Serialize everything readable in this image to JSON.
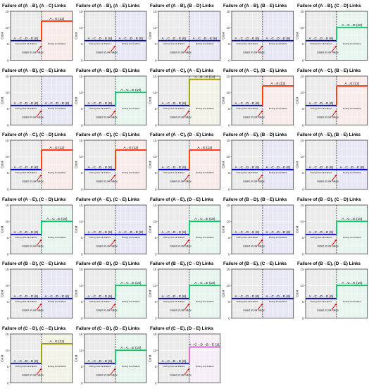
{
  "chart_data": [
    {
      "type": "line",
      "title": "Failure of (A→B), (A→C) Links",
      "ylabel": "Cost",
      "ylim": [
        0,
        15
      ],
      "yticks": [
        0,
        5,
        10,
        15
      ],
      "before": {
        "path": "A→C→D→E (6)",
        "cost": 6,
        "color": "#0000cc"
      },
      "after": {
        "path": "A→E (12)",
        "cost": 12,
        "color": "#ff3300"
      },
      "labels": {
        "left_phase": "During No-Link Failure",
        "right_phase": "During Link Failure",
        "instant": "Instant of Link Failure"
      }
    },
    {
      "type": "line",
      "title": "Failure of (A→B), (A→E) Links",
      "ylabel": "Cost",
      "ylim": [
        0,
        15
      ],
      "yticks": [
        0,
        5,
        10,
        15
      ],
      "before": {
        "path": "A→C→D→E (6)",
        "cost": 6,
        "color": "#0000cc"
      },
      "after": {
        "path": "A→C→D→E (6)",
        "cost": 6,
        "color": "#0000cc"
      },
      "labels": {
        "left_phase": "During No-Link Failure",
        "right_phase": "During Link Failure",
        "instant": "Instant of Link Failure"
      }
    },
    {
      "type": "line",
      "title": "Failure of (A→B), (B→D) Links",
      "ylabel": "Cost",
      "ylim": [
        0,
        15
      ],
      "yticks": [
        0,
        5,
        10,
        15
      ],
      "before": {
        "path": "A→C→D→E (6)",
        "cost": 6,
        "color": "#0000cc"
      },
      "after": {
        "path": "A→C→D→E (6)",
        "cost": 6,
        "color": "#0000cc"
      },
      "labels": {
        "left_phase": "During No-Link Failure",
        "right_phase": "During Link Failure",
        "instant": "Instant of Link Failure"
      }
    },
    {
      "type": "line",
      "title": "Failure of (A→B), (B→E) Links",
      "ylabel": "Cost",
      "ylim": [
        0,
        15
      ],
      "yticks": [
        0,
        5,
        10,
        15
      ],
      "before": {
        "path": "A→C→D→E (6)",
        "cost": 6,
        "color": "#0000cc"
      },
      "after": {
        "path": "A→C→D→E (6)",
        "cost": 6,
        "color": "#0000cc"
      },
      "labels": {
        "left_phase": "During No-Link Failure",
        "right_phase": "During Link Failure",
        "instant": "Instant of Link Failure"
      }
    },
    {
      "type": "line",
      "title": "Failure of (A→B), (C→D) Links",
      "ylabel": "Cost",
      "ylim": [
        0,
        15
      ],
      "yticks": [
        0,
        5,
        10,
        15
      ],
      "before": {
        "path": "A→C→D→E (6)",
        "cost": 6,
        "color": "#0000cc"
      },
      "after": {
        "path": "A→C→E (10)",
        "cost": 10,
        "color": "#00cc66"
      },
      "labels": {
        "left_phase": "During No-Link Failure",
        "right_phase": "During Link Failure",
        "instant": "Instant of Link Failure"
      }
    },
    {
      "type": "line",
      "title": "Failure of (A→B), (C→E) Links",
      "ylabel": "Cost",
      "ylim": [
        0,
        15
      ],
      "yticks": [
        0,
        5,
        10,
        15
      ],
      "before": {
        "path": "A→C→D→E (6)",
        "cost": 6,
        "color": "#0000cc"
      },
      "after": {
        "path": "A→C→D→E (6)",
        "cost": 6,
        "color": "#0000cc"
      },
      "labels": {
        "left_phase": "During No-Link Failure",
        "right_phase": "During Link Failure",
        "instant": "Instant of Link Failure"
      }
    },
    {
      "type": "line",
      "title": "Failure of (A→B), (D→E) Links",
      "ylabel": "Cost",
      "ylim": [
        0,
        15
      ],
      "yticks": [
        0,
        5,
        10,
        15
      ],
      "before": {
        "path": "A→C→D→E (6)",
        "cost": 6,
        "color": "#0000cc"
      },
      "after": {
        "path": "A→C→E (10)",
        "cost": 10,
        "color": "#00cc66"
      },
      "labels": {
        "left_phase": "During No-Link Failure",
        "right_phase": "During Link Failure",
        "instant": "Instant of Link Failure"
      }
    },
    {
      "type": "line",
      "title": "Failure of (A→C), (A→E) Links",
      "ylabel": "Cost",
      "ylim": [
        0,
        15
      ],
      "yticks": [
        0,
        5,
        10,
        15
      ],
      "before": {
        "path": "A→C→D→E (6)",
        "cost": 6,
        "color": "#0000cc"
      },
      "after": {
        "path": "A→B→E (14)",
        "cost": 14,
        "color": "#999900"
      },
      "labels": {
        "left_phase": "During No-Link Failure",
        "right_phase": "During Link Failure",
        "instant": "Instant of Link Failure"
      }
    },
    {
      "type": "line",
      "title": "Failure of (A→C), (B→E) Links",
      "ylabel": "Cost",
      "ylim": [
        0,
        15
      ],
      "yticks": [
        0,
        5,
        10,
        15
      ],
      "before": {
        "path": "A→C→D→E (6)",
        "cost": 6,
        "color": "#0000cc"
      },
      "after": {
        "path": "A→E (12)",
        "cost": 12,
        "color": "#ff3300"
      },
      "labels": {
        "left_phase": "During No-Link Failure",
        "right_phase": "During Link Failure",
        "instant": "Instant of Link Failure"
      }
    },
    {
      "type": "line",
      "title": "Failure of (A→C), (B→E) Links",
      "ylabel": "Cost",
      "ylim": [
        0,
        15
      ],
      "yticks": [
        0,
        5,
        10,
        15
      ],
      "before": {
        "path": "A→C→D→E (6)",
        "cost": 6,
        "color": "#0000cc"
      },
      "after": {
        "path": "A→E (12)",
        "cost": 12,
        "color": "#ff3300"
      },
      "labels": {
        "left_phase": "During No-Link Failure",
        "right_phase": "During Link Failure",
        "instant": "Instant of Link Failure"
      }
    },
    {
      "type": "line",
      "title": "Failure of (A→C), (C→D) Links",
      "ylabel": "Cost",
      "ylim": [
        0,
        15
      ],
      "yticks": [
        0,
        5,
        10,
        15
      ],
      "before": {
        "path": "A→C→D→E (6)",
        "cost": 6,
        "color": "#0000cc"
      },
      "after": {
        "path": "A→E (12)",
        "cost": 12,
        "color": "#ff3300"
      },
      "labels": {
        "left_phase": "During No-Link Failure",
        "right_phase": "During Link Failure",
        "instant": "Instant of Link Failure"
      }
    },
    {
      "type": "line",
      "title": "Failure of (A→C), (C→E) Links",
      "ylabel": "Cost",
      "ylim": [
        0,
        15
      ],
      "yticks": [
        0,
        5,
        10,
        15
      ],
      "before": {
        "path": "A→C→D→E (6)",
        "cost": 6,
        "color": "#0000cc"
      },
      "after": {
        "path": "A→E (12)",
        "cost": 12,
        "color": "#ff3300"
      },
      "labels": {
        "left_phase": "During No-Link Failure",
        "right_phase": "During Link Failure",
        "instant": "Instant of Link Failure"
      }
    },
    {
      "type": "line",
      "title": "Failure of (A→C), (D→E) Links",
      "ylabel": "Cost",
      "ylim": [
        0,
        15
      ],
      "yticks": [
        0,
        5,
        10,
        15
      ],
      "before": {
        "path": "A→C→D→E (6)",
        "cost": 6,
        "color": "#0000cc"
      },
      "after": {
        "path": "A→E (12)",
        "cost": 12,
        "color": "#ff3300"
      },
      "labels": {
        "left_phase": "During No-Link Failure",
        "right_phase": "During Link Failure",
        "instant": "Instant of Link Failure"
      }
    },
    {
      "type": "line",
      "title": "Failure of (A→E), (B→D) Links",
      "ylabel": "Cost",
      "ylim": [
        0,
        15
      ],
      "yticks": [
        0,
        5,
        10,
        15
      ],
      "before": {
        "path": "A→C→D→E (6)",
        "cost": 6,
        "color": "#0000cc"
      },
      "after": {
        "path": "A→C→D→E (6)",
        "cost": 6,
        "color": "#0000cc"
      },
      "labels": {
        "left_phase": "During No-Link Failure",
        "right_phase": "During Link Failure",
        "instant": "Instant of Link Failure"
      }
    },
    {
      "type": "line",
      "title": "Failure of (A→E), (B→E) Links",
      "ylabel": "Cost",
      "ylim": [
        0,
        15
      ],
      "yticks": [
        0,
        5,
        10,
        15
      ],
      "before": {
        "path": "A→C→D→E (6)",
        "cost": 6,
        "color": "#0000cc"
      },
      "after": {
        "path": "A→C→D→E (6)",
        "cost": 6,
        "color": "#0000cc"
      },
      "labels": {
        "left_phase": "During No-Link Failure",
        "right_phase": "During Link Failure",
        "instant": "Instant of Link Failure"
      }
    },
    {
      "type": "line",
      "title": "Failure of (A→E), (C→D) Links",
      "ylabel": "Cost",
      "ylim": [
        0,
        15
      ],
      "yticks": [
        0,
        5,
        10,
        15
      ],
      "before": {
        "path": "A→C→D→E (6)",
        "cost": 6,
        "color": "#0000cc"
      },
      "after": {
        "path": "A→C→E (10)",
        "cost": 10,
        "color": "#00cc66"
      },
      "labels": {
        "left_phase": "During No-Link Failure",
        "right_phase": "During Link Failure",
        "instant": "Instant of Link Failure"
      }
    },
    {
      "type": "line",
      "title": "Failure of (A→E), (C→E) Links",
      "ylabel": "Cost",
      "ylim": [
        0,
        15
      ],
      "yticks": [
        0,
        5,
        10,
        15
      ],
      "before": {
        "path": "A→C→D→E (6)",
        "cost": 6,
        "color": "#0000cc"
      },
      "after": {
        "path": "A→C→D→E (6)",
        "cost": 6,
        "color": "#0000cc"
      },
      "labels": {
        "left_phase": "During No-Link Failure",
        "right_phase": "During Link Failure",
        "instant": "Instant of Link Failure"
      }
    },
    {
      "type": "line",
      "title": "Failure of (A→E), (D→E) Links",
      "ylabel": "Cost",
      "ylim": [
        0,
        15
      ],
      "yticks": [
        0,
        5,
        10,
        15
      ],
      "before": {
        "path": "A→C→D→E (6)",
        "cost": 6,
        "color": "#0000cc"
      },
      "after": {
        "path": "A→C→E (10)",
        "cost": 10,
        "color": "#00cc66"
      },
      "labels": {
        "left_phase": "During No-Link Failure",
        "right_phase": "During Link Failure",
        "instant": "Instant of Link Failure"
      }
    },
    {
      "type": "line",
      "title": "Failure of (B→D), (B→E) Links",
      "ylabel": "Cost",
      "ylim": [
        0,
        15
      ],
      "yticks": [
        0,
        5,
        10,
        15
      ],
      "before": {
        "path": "A→C→D→E (6)",
        "cost": 6,
        "color": "#0000cc"
      },
      "after": {
        "path": "A→C→D→E (6)",
        "cost": 6,
        "color": "#0000cc"
      },
      "labels": {
        "left_phase": "During No-Link Failure",
        "right_phase": "During Link Failure",
        "instant": "Instant of Link Failure"
      }
    },
    {
      "type": "line",
      "title": "Failure of (B→D), (C→D) Links",
      "ylabel": "Cost",
      "ylim": [
        0,
        15
      ],
      "yticks": [
        0,
        5,
        10,
        15
      ],
      "before": {
        "path": "A→C→D→E (6)",
        "cost": 6,
        "color": "#0000cc"
      },
      "after": {
        "path": "A→C→E (10)",
        "cost": 10,
        "color": "#00cc66"
      },
      "labels": {
        "left_phase": "During No-Link Failure",
        "right_phase": "During Link Failure",
        "instant": "Instant of Link Failure"
      }
    },
    {
      "type": "line",
      "title": "Failure of (B→D), (C→E) Links",
      "ylabel": "Cost",
      "ylim": [
        0,
        15
      ],
      "yticks": [
        0,
        5,
        10,
        15
      ],
      "before": {
        "path": "A→C→D→E (6)",
        "cost": 6,
        "color": "#0000cc"
      },
      "after": {
        "path": "A→C→D→E (6)",
        "cost": 6,
        "color": "#0000cc"
      },
      "labels": {
        "left_phase": "During No-Link Failure",
        "right_phase": "During Link Failure",
        "instant": "Instant of Link Failure"
      }
    },
    {
      "type": "line",
      "title": "Failure of (B→D), (D→E) Links",
      "ylabel": "Cost",
      "ylim": [
        0,
        15
      ],
      "yticks": [
        0,
        5,
        10,
        15
      ],
      "before": {
        "path": "A→C→D→E (6)",
        "cost": 6,
        "color": "#0000cc"
      },
      "after": {
        "path": "A→C→E (10)",
        "cost": 10,
        "color": "#00cc66"
      },
      "labels": {
        "left_phase": "During No-Link Failure",
        "right_phase": "During Link Failure",
        "instant": "Instant of Link Failure"
      }
    },
    {
      "type": "line",
      "title": "Failure of (B→E), (C→D) Links",
      "ylabel": "Cost",
      "ylim": [
        0,
        15
      ],
      "yticks": [
        0,
        5,
        10,
        15
      ],
      "before": {
        "path": "A→C→D→E (6)",
        "cost": 6,
        "color": "#0000cc"
      },
      "after": {
        "path": "A→C→E (10)",
        "cost": 10,
        "color": "#00cc66"
      },
      "labels": {
        "left_phase": "During No-Link Failure",
        "right_phase": "During Link Failure",
        "instant": "Instant of Link Failure"
      }
    },
    {
      "type": "line",
      "title": "Failure of (B→E), (C→E) Links",
      "ylabel": "Cost",
      "ylim": [
        0,
        15
      ],
      "yticks": [
        0,
        5,
        10,
        15
      ],
      "before": {
        "path": "A→C→D→E (6)",
        "cost": 6,
        "color": "#0000cc"
      },
      "after": {
        "path": "A→C→D→E (6)",
        "cost": 6,
        "color": "#0000cc"
      },
      "labels": {
        "left_phase": "During No-Link Failure",
        "right_phase": "During Link Failure",
        "instant": "Instant of Link Failure"
      }
    },
    {
      "type": "line",
      "title": "Failure of (B→E), (D→E) Links",
      "ylabel": "Cost",
      "ylim": [
        0,
        15
      ],
      "yticks": [
        0,
        5,
        10,
        15
      ],
      "before": {
        "path": "A→C→D→E (6)",
        "cost": 6,
        "color": "#0000cc"
      },
      "after": {
        "path": "A→C→E (10)",
        "cost": 10,
        "color": "#00cc66"
      },
      "labels": {
        "left_phase": "During No-Link Failure",
        "right_phase": "During Link Failure",
        "instant": "Instant of Link Failure"
      }
    },
    {
      "type": "line",
      "title": "Failure of (C→D), (C→E) Links",
      "ylabel": "Cost",
      "ylim": [
        0,
        15
      ],
      "yticks": [
        0,
        5,
        10,
        15
      ],
      "before": {
        "path": "A→C→D→E (6)",
        "cost": 6,
        "color": "#0000cc"
      },
      "after": {
        "path": "A→E (12)",
        "cost": 12,
        "color": "#999900"
      },
      "labels": {
        "left_phase": "During No-Link Failure",
        "right_phase": "During Link Failure",
        "instant": "Instant of Link Failure"
      }
    },
    {
      "type": "line",
      "title": "Failure of (C→D), (D→E) Links",
      "ylabel": "Cost",
      "ylim": [
        0,
        15
      ],
      "yticks": [
        0,
        5,
        10,
        15
      ],
      "before": {
        "path": "A→C→D→E (6)",
        "cost": 6,
        "color": "#0000cc"
      },
      "after": {
        "path": "A→C→E (10)",
        "cost": 10,
        "color": "#00cc66"
      },
      "labels": {
        "left_phase": "During No-Link Failure",
        "right_phase": "During Link Failure",
        "instant": "Instant of Link Failure"
      }
    },
    {
      "type": "line",
      "title": "Failure of (C→E), (D→E) Links",
      "ylabel": "Cost",
      "ylim": [
        0,
        15
      ],
      "yticks": [
        0,
        5,
        10,
        15
      ],
      "before": {
        "path": "A→C→D→E (6)",
        "cost": 6,
        "color": "#0000cc"
      },
      "after": {
        "path": "A→C→D→B→E (11)",
        "cost": 11,
        "color": "#cc66cc"
      },
      "labels": {
        "left_phase": "During No-Link Failure",
        "right_phase": "During Link Failure",
        "instant": "Instant of Link Failure"
      }
    }
  ]
}
